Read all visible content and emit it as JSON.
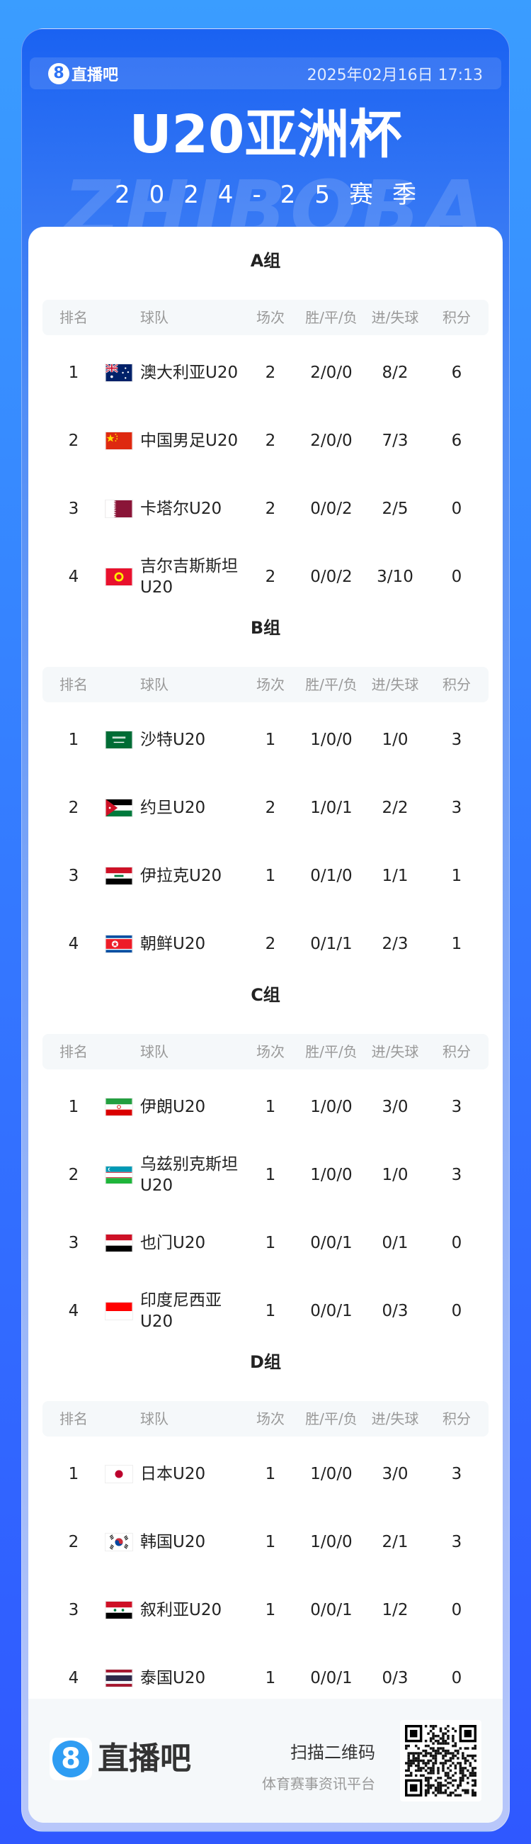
{
  "header": {
    "brand": "直播吧",
    "brand_icon": "8",
    "datetime": "2025年02月16日 17:13"
  },
  "title": "U20亚洲杯",
  "season": "2024-25赛季",
  "watermark": "ZHIBOBA",
  "columns": [
    "排名",
    "球队",
    "场次",
    "胜/平/负",
    "进/失球",
    "积分"
  ],
  "groups": [
    {
      "name": "A组",
      "rows": [
        {
          "rank": "1",
          "flag": "australia",
          "team": "澳大利亚U20",
          "played": "2",
          "wdl": "2/0/0",
          "goals": "8/2",
          "points": "6"
        },
        {
          "rank": "2",
          "flag": "china",
          "team": "中国男足U20",
          "played": "2",
          "wdl": "2/0/0",
          "goals": "7/3",
          "points": "6"
        },
        {
          "rank": "3",
          "flag": "qatar",
          "team": "卡塔尔U20",
          "played": "2",
          "wdl": "0/0/2",
          "goals": "2/5",
          "points": "0"
        },
        {
          "rank": "4",
          "flag": "kyrgyzstan",
          "team": "吉尔吉斯斯坦U20",
          "played": "2",
          "wdl": "0/0/2",
          "goals": "3/10",
          "points": "0"
        }
      ]
    },
    {
      "name": "B组",
      "rows": [
        {
          "rank": "1",
          "flag": "saudi",
          "team": "沙特U20",
          "played": "1",
          "wdl": "1/0/0",
          "goals": "1/0",
          "points": "3"
        },
        {
          "rank": "2",
          "flag": "jordan",
          "team": "约旦U20",
          "played": "2",
          "wdl": "1/0/1",
          "goals": "2/2",
          "points": "3"
        },
        {
          "rank": "3",
          "flag": "iraq",
          "team": "伊拉克U20",
          "played": "1",
          "wdl": "0/1/0",
          "goals": "1/1",
          "points": "1"
        },
        {
          "rank": "4",
          "flag": "northkorea",
          "team": "朝鲜U20",
          "played": "2",
          "wdl": "0/1/1",
          "goals": "2/3",
          "points": "1"
        }
      ]
    },
    {
      "name": "C组",
      "rows": [
        {
          "rank": "1",
          "flag": "iran",
          "team": "伊朗U20",
          "played": "1",
          "wdl": "1/0/0",
          "goals": "3/0",
          "points": "3"
        },
        {
          "rank": "2",
          "flag": "uzbekistan",
          "team": "乌兹别克斯坦U20",
          "played": "1",
          "wdl": "1/0/0",
          "goals": "1/0",
          "points": "3"
        },
        {
          "rank": "3",
          "flag": "yemen",
          "team": "也门U20",
          "played": "1",
          "wdl": "0/0/1",
          "goals": "0/1",
          "points": "0"
        },
        {
          "rank": "4",
          "flag": "indonesia",
          "team": "印度尼西亚U20",
          "played": "1",
          "wdl": "0/0/1",
          "goals": "0/3",
          "points": "0"
        }
      ]
    },
    {
      "name": "D组",
      "rows": [
        {
          "rank": "1",
          "flag": "japan",
          "team": "日本U20",
          "played": "1",
          "wdl": "1/0/0",
          "goals": "3/0",
          "points": "3"
        },
        {
          "rank": "2",
          "flag": "korea",
          "team": "韩国U20",
          "played": "1",
          "wdl": "1/0/0",
          "goals": "2/1",
          "points": "3"
        },
        {
          "rank": "3",
          "flag": "syria",
          "team": "叙利亚U20",
          "played": "1",
          "wdl": "0/0/1",
          "goals": "1/2",
          "points": "0"
        },
        {
          "rank": "4",
          "flag": "thailand",
          "team": "泰国U20",
          "played": "1",
          "wdl": "0/0/1",
          "goals": "0/3",
          "points": "0"
        }
      ]
    }
  ],
  "footer": {
    "brand": "直播吧",
    "brand_icon": "8",
    "scan": "扫描二维码",
    "tagline": "体育赛事资讯平台"
  }
}
